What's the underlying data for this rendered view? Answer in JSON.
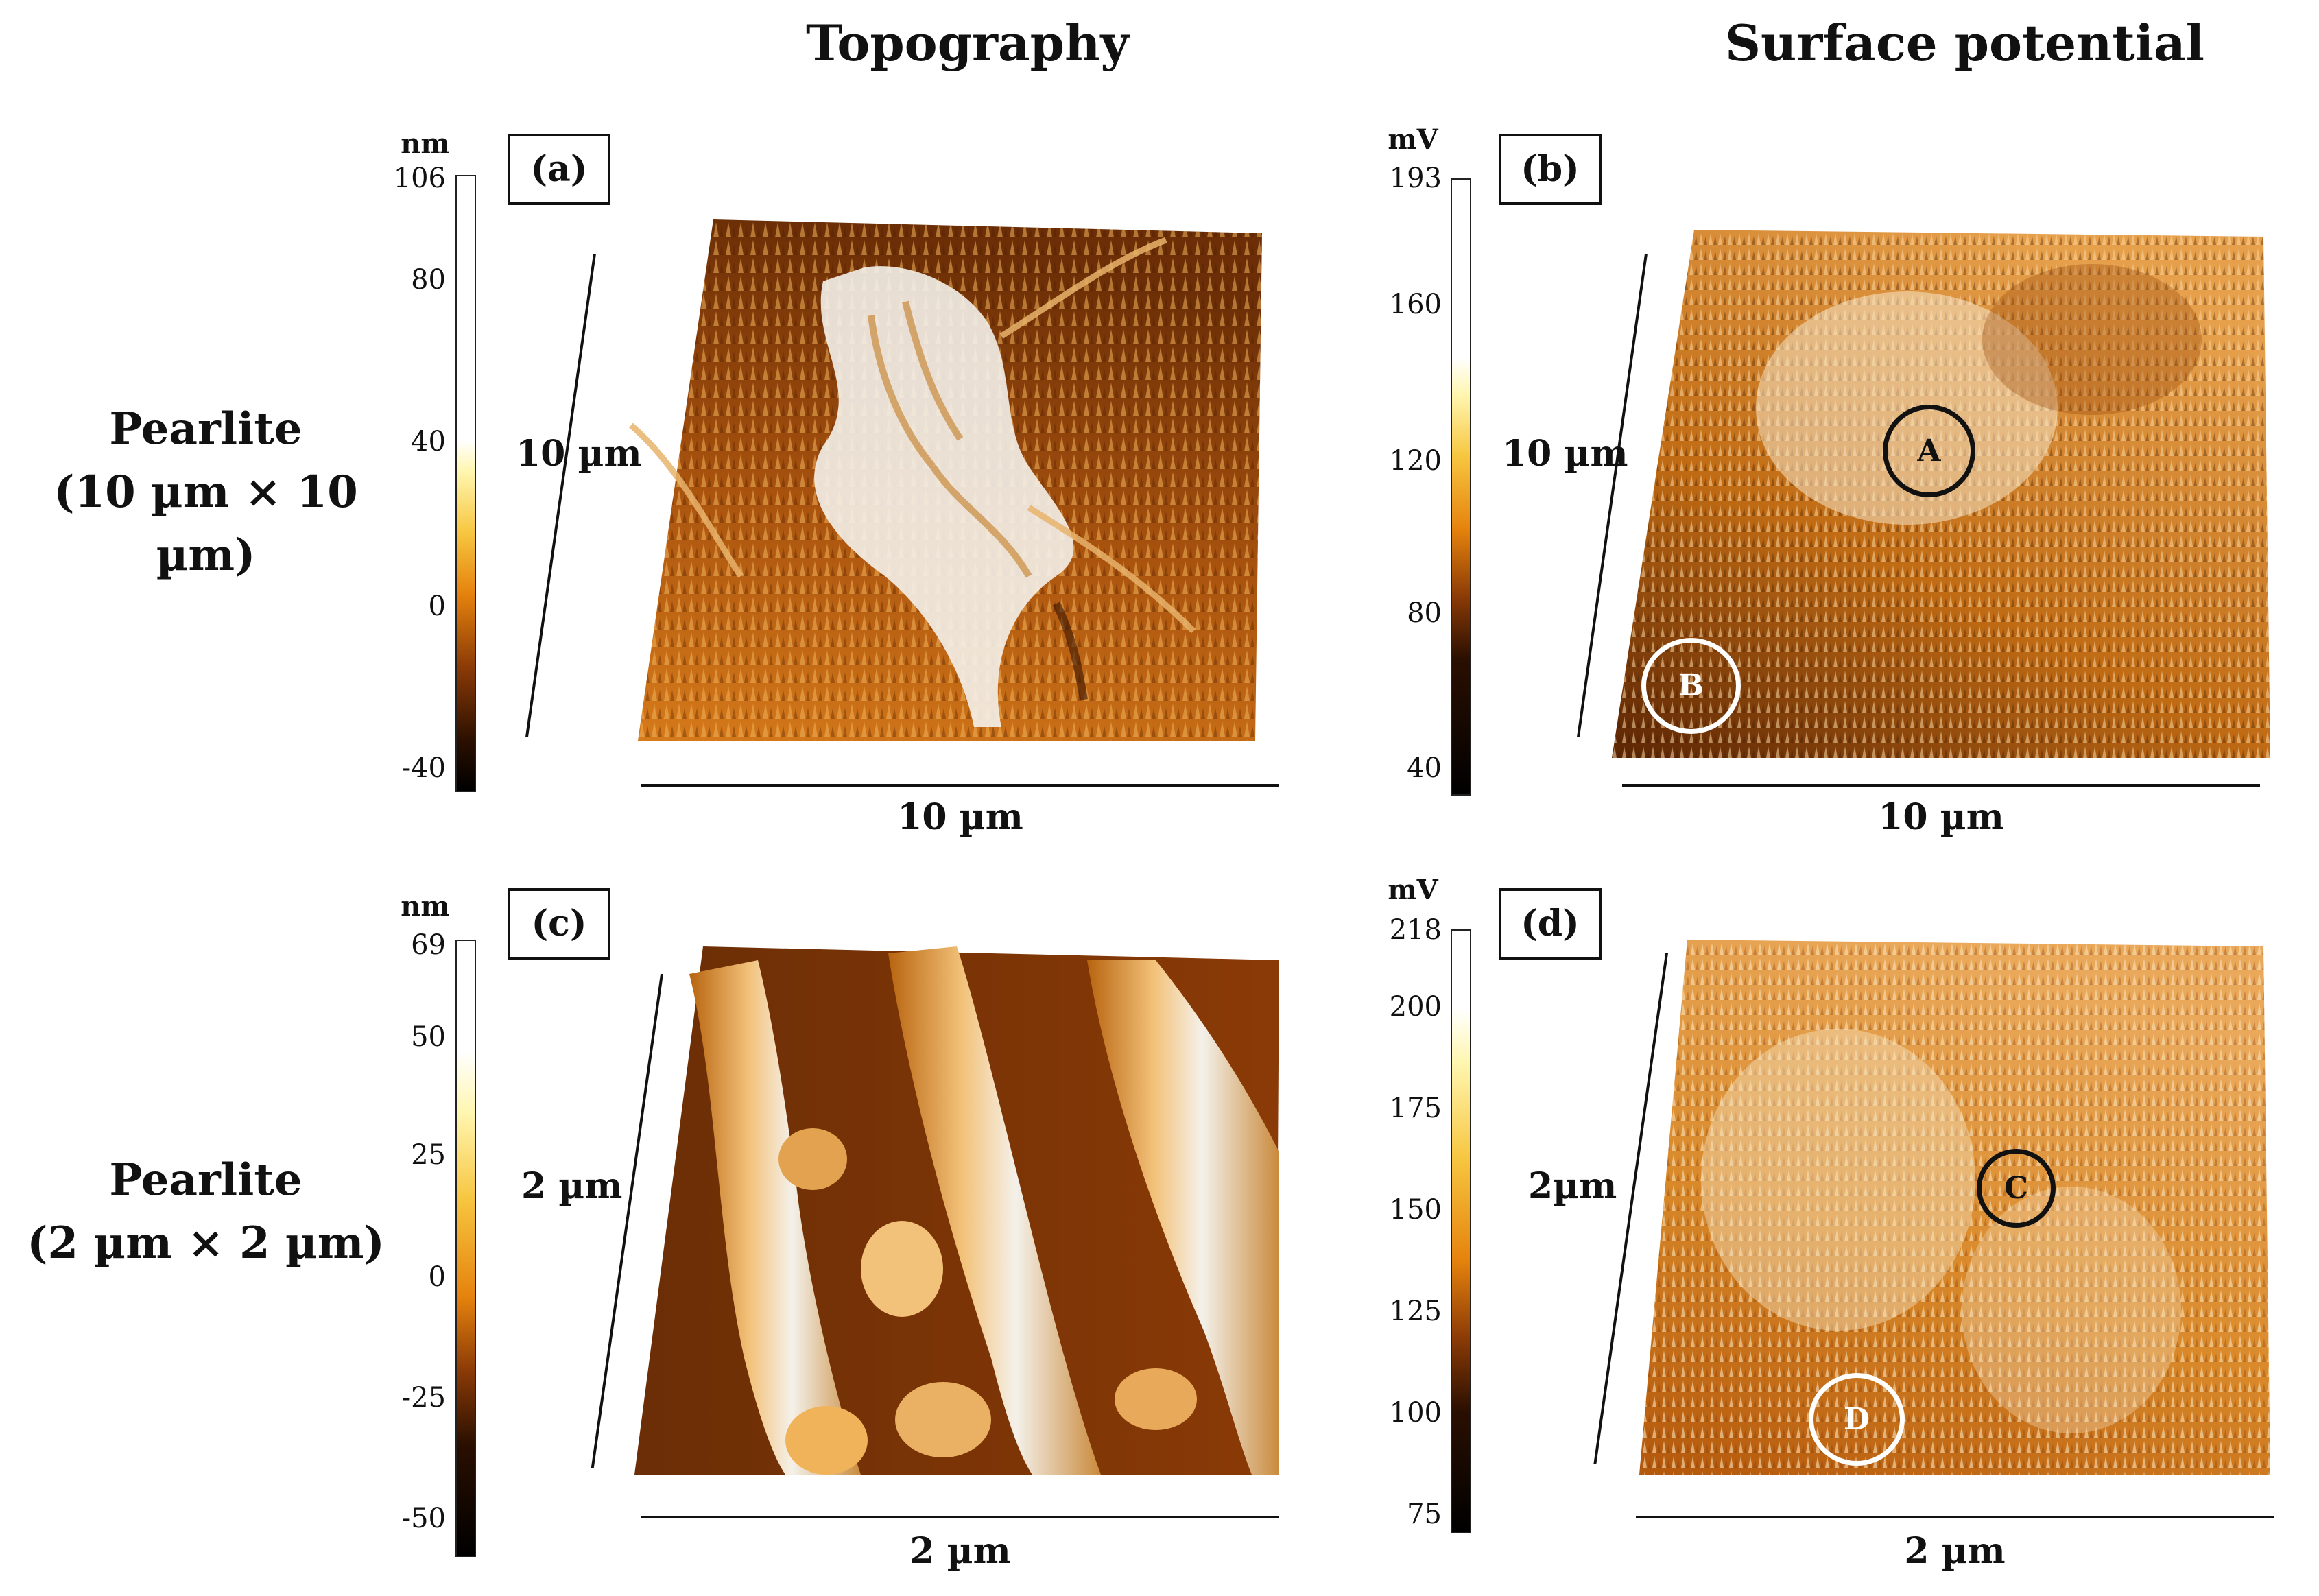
{
  "headers": {
    "topography": "Topography",
    "surface_potential": "Surface potential"
  },
  "rows": [
    {
      "line1": "Pearlite",
      "line2": "(10 µm × 10 µm)"
    },
    {
      "line1": "Pearlite",
      "line2": "(2 µm × 2 µm)"
    }
  ],
  "panels": {
    "a": {
      "letter": "(a)",
      "unit": "nm",
      "ticks": [
        "106",
        "80",
        "40",
        "0",
        "-40"
      ],
      "side": "10 µm",
      "bottom": "10 µm"
    },
    "b": {
      "letter": "(b)",
      "unit": "mV",
      "ticks": [
        "193",
        "160",
        "120",
        "80",
        "40"
      ],
      "side": "10 µm",
      "bottom": "10 µm",
      "markers": [
        "A",
        "B"
      ]
    },
    "c": {
      "letter": "(c)",
      "unit": "nm",
      "ticks": [
        "69",
        "50",
        "25",
        "0",
        "-25",
        "-50"
      ],
      "side": "2 µm",
      "bottom": "2 µm"
    },
    "d": {
      "letter": "(d)",
      "unit": "mV",
      "ticks": [
        "218",
        "200",
        "175",
        "150",
        "125",
        "100",
        "75"
      ],
      "side": "2µm",
      "bottom": "2 µm",
      "markers": [
        "C",
        "D"
      ]
    }
  },
  "colors": {
    "afm_dark": "#2a0f00",
    "afm_mid": "#c8660c",
    "afm_light": "#f3c27a",
    "afm_white": "#f4f1ea"
  }
}
